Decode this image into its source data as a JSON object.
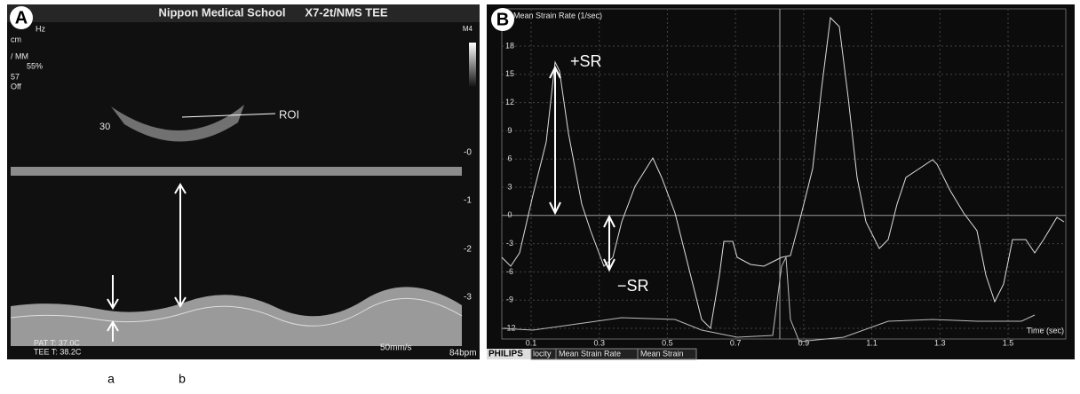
{
  "panel_a": {
    "label": "A",
    "header_left": "Nippon Medical School",
    "header_right": "X7-2t/NMS TEE",
    "side_texts": [
      "Hz",
      "cm",
      "/ MM",
      "55%",
      "57",
      "Off"
    ],
    "mode": "M4",
    "angle": "30",
    "roi": "ROI",
    "depth_ticks": [
      "-0",
      "-1",
      "-2",
      "-3"
    ],
    "temp_pat": "PAT T: 37.0C",
    "temp_tee": "TEE T: 38.2C",
    "speed": "50mm/s",
    "heart_rate": "84bpm"
  },
  "panel_b": {
    "label": "B",
    "axis_title": "Mean Strain Rate (1/sec)",
    "x_title": "Time (sec)",
    "yticks": [
      18,
      15,
      12,
      9,
      6,
      3,
      0,
      -3,
      -6,
      -9,
      -12
    ],
    "xticks": [
      0.1,
      0.3,
      0.5,
      0.7,
      0.9,
      1.1,
      1.3,
      1.5
    ],
    "plus_sr": "+SR",
    "minus_sr": "−SR",
    "brand": "PHILIPS",
    "tabs": [
      "locity",
      "Mean Strain Rate",
      "Mean Strain"
    ]
  },
  "captions": [
    "a",
    "b"
  ]
}
